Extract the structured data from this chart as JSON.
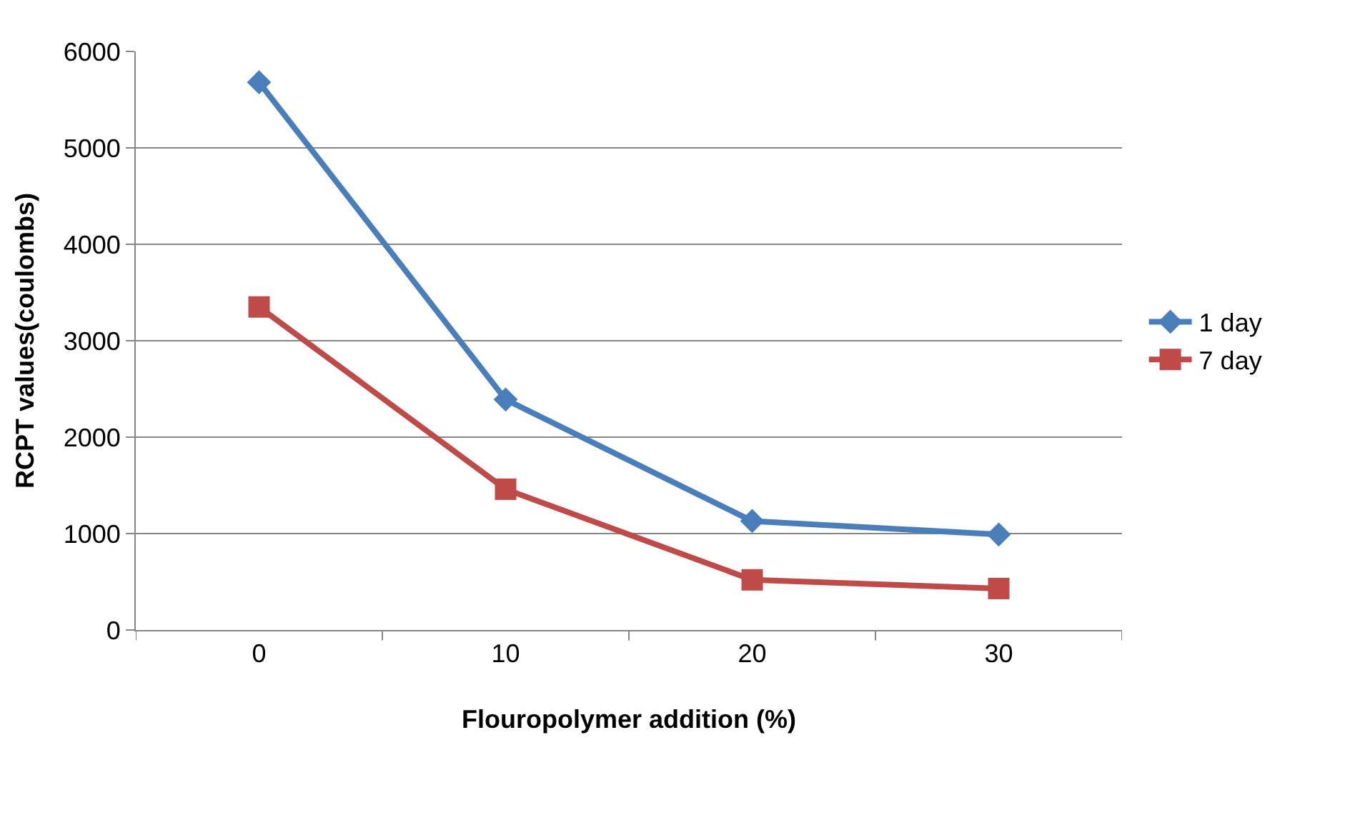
{
  "chart_data": {
    "type": "line",
    "xlabel": "Flouropolymer addition (%)",
    "ylabel": "RCPT values(coulombs)",
    "categories": [
      "0",
      "10",
      "20",
      "30"
    ],
    "series": [
      {
        "name": "1 day",
        "color": "#4a7ebb",
        "marker": "diamond",
        "values": [
          5680,
          2390,
          1130,
          990
        ]
      },
      {
        "name": "7 day",
        "color": "#be4b48",
        "marker": "square",
        "values": [
          3350,
          1460,
          520,
          430
        ]
      }
    ],
    "ylim": [
      0,
      6000
    ],
    "yticks": [
      0,
      1000,
      2000,
      3000,
      4000,
      5000,
      6000
    ],
    "grid": "y",
    "legend": "right",
    "line_style": "solid"
  }
}
